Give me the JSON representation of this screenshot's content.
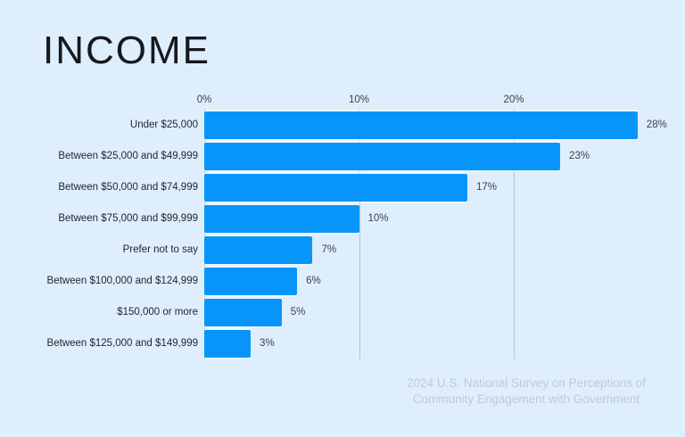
{
  "page": {
    "title": "INCOME",
    "background_color": "#deeefc"
  },
  "footer": {
    "line1": "2024 U.S. National Survey on Perceptions of",
    "line2": "Community Engagement with Government"
  },
  "chart_data": {
    "type": "bar",
    "orientation": "horizontal",
    "title": "INCOME",
    "categories": [
      "Under $25,000",
      "Between $25,000 and $49,999",
      "Between $50,000 and $74,999",
      "Between $75,000 and $99,999",
      "Prefer not to say",
      "Between $100,000 and $124,999",
      "$150,000 or more",
      "Between $125,000 and $149,999"
    ],
    "values": [
      28,
      23,
      17,
      10,
      7,
      6,
      5,
      3
    ],
    "value_labels": [
      "28%",
      "23%",
      "17%",
      "10%",
      "7%",
      "6%",
      "5%",
      "3%"
    ],
    "x_ticks": [
      "0%",
      "10%",
      "20%"
    ],
    "x_tick_values": [
      0,
      10,
      20
    ],
    "xlim": [
      0,
      31
    ],
    "grid": true,
    "legend": "none",
    "bar_color": "#0895fa",
    "gridline_color": "#7d91a8",
    "label_color": "#1f242b",
    "value_color": "#3d424a"
  }
}
